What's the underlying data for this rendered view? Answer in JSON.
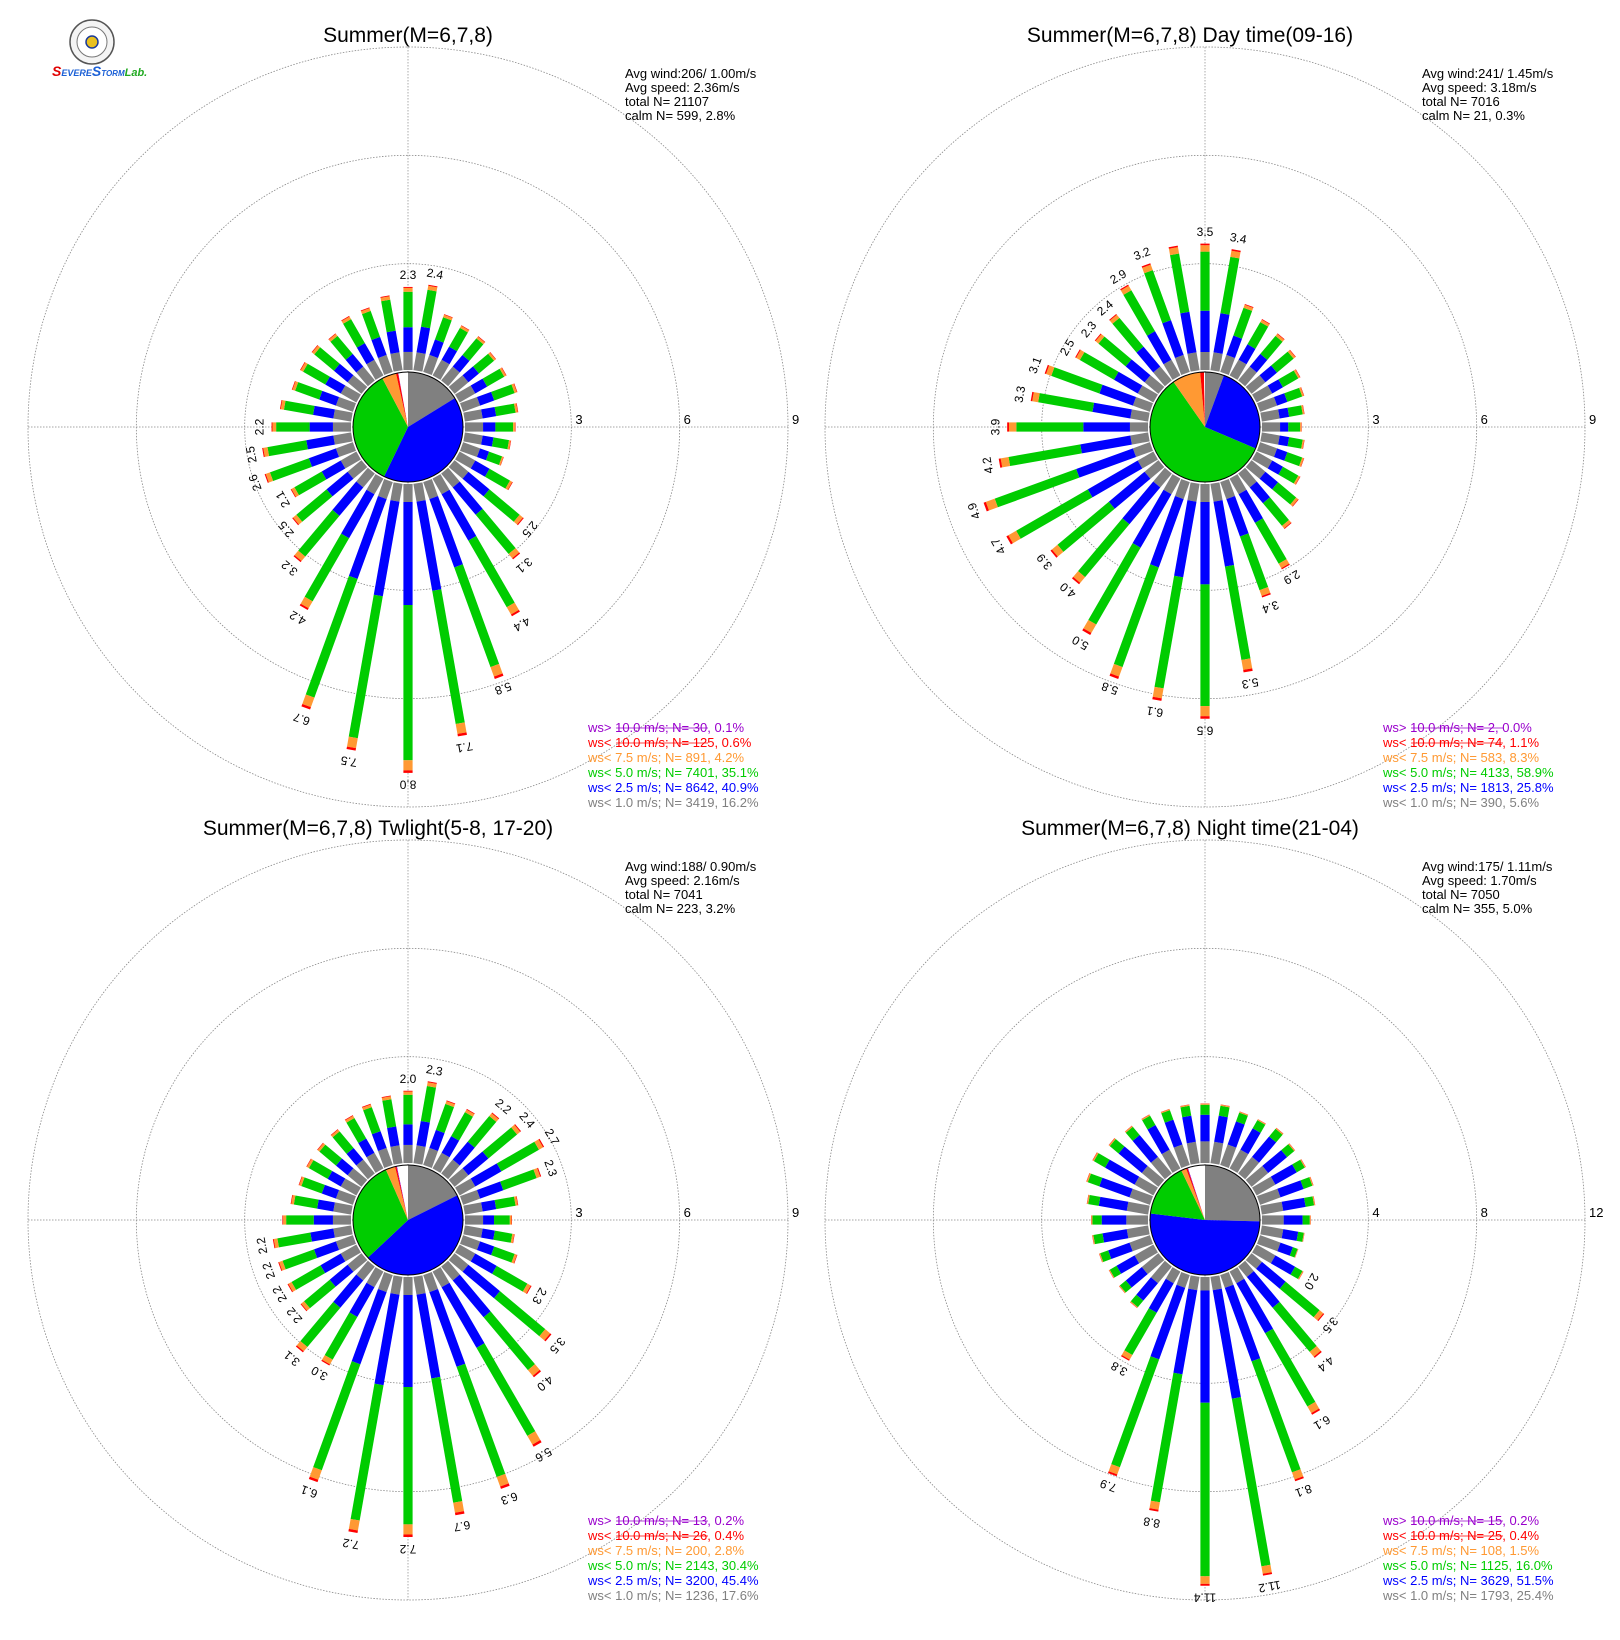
{
  "logo": {
    "text_parts": [
      "S",
      "EVERE",
      "S",
      "TORM",
      "Lab."
    ],
    "colors": [
      "#e00000",
      "#1a5fd6",
      "#1a5fd6",
      "#1a5fd6",
      "#22aa22"
    ]
  },
  "colors": {
    "gt10": "#9900cc",
    "lt10": "#ff0000",
    "lt7_5": "#ff9933",
    "lt5": "#00cc00",
    "lt2_5": "#0000ff",
    "lt1": "#808080",
    "grid": "#888888"
  },
  "chart_data": [
    {
      "type": "wind-rose",
      "title": "Summer(M=6,7,8)",
      "info": {
        "avg_wind": "Avg wind:206/ 1.00m/s",
        "avg_speed": "Avg speed: 2.36m/s",
        "total": "total N=      21107",
        "calm": "calm N=    599,   2.8%"
      },
      "rings": [
        3,
        6,
        9
      ],
      "ring_labels": [
        "3",
        "6",
        "9"
      ],
      "center_pie": [
        {
          "class": "lt1",
          "value": 16.2
        },
        {
          "class": "lt2_5",
          "value": 40.9
        },
        {
          "class": "lt5",
          "value": 35.1
        },
        {
          "class": "lt7_5",
          "value": 4.2
        },
        {
          "class": "lt10",
          "value": 0.6
        },
        {
          "class": "gt10",
          "value": 0.1
        },
        {
          "class": "calm",
          "value": 2.8
        }
      ],
      "legend": [
        {
          "class": "gt10",
          "text": "ws> 10.0 m/s; N=    30,  0.1%"
        },
        {
          "class": "lt10",
          "text": "ws< 10.0 m/s; N=   125,  0.6%"
        },
        {
          "class": "lt7_5",
          "text": "ws<  7.5 m/s; N=   891,  4.2%"
        },
        {
          "class": "lt5",
          "text": "ws<  5.0 m/s; N=  7401, 35.1%"
        },
        {
          "class": "lt2_5",
          "text": "ws<  2.5 m/s; N=  8642, 40.9%"
        },
        {
          "class": "lt1",
          "text": "ws<  1.0 m/s; N=  3419, 16.2%"
        }
      ],
      "sectors": 36,
      "bars": [
        {
          "dir": 0,
          "total": 2.3,
          "label": "2.3"
        },
        {
          "dir": 10,
          "total": 2.4,
          "label": "2.4"
        },
        {
          "dir": 20,
          "total": 1.7
        },
        {
          "dir": 30,
          "total": 1.6
        },
        {
          "dir": 40,
          "total": 1.6
        },
        {
          "dir": 50,
          "total": 1.5
        },
        {
          "dir": 60,
          "total": 1.5
        },
        {
          "dir": 70,
          "total": 1.6
        },
        {
          "dir": 80,
          "total": 1.5
        },
        {
          "dir": 90,
          "total": 1.4
        },
        {
          "dir": 100,
          "total": 1.3
        },
        {
          "dir": 110,
          "total": 1.2
        },
        {
          "dir": 120,
          "total": 1.7
        },
        {
          "dir": 130,
          "total": 2.5,
          "label": "2.5"
        },
        {
          "dir": 140,
          "total": 3.1,
          "label": "3.1"
        },
        {
          "dir": 150,
          "total": 4.4,
          "label": "4.4"
        },
        {
          "dir": 160,
          "total": 5.8,
          "label": "5.8"
        },
        {
          "dir": 170,
          "total": 7.1,
          "label": "7.1"
        },
        {
          "dir": 180,
          "total": 8.0,
          "label": "8.0"
        },
        {
          "dir": 190,
          "total": 7.5,
          "label": "7.5"
        },
        {
          "dir": 200,
          "total": 6.7,
          "label": "6.7"
        },
        {
          "dir": 210,
          "total": 4.2,
          "label": "4.2"
        },
        {
          "dir": 220,
          "total": 3.2,
          "label": "3.2"
        },
        {
          "dir": 230,
          "total": 2.5,
          "label": "2.5"
        },
        {
          "dir": 240,
          "total": 2.1,
          "label": "2.1"
        },
        {
          "dir": 250,
          "total": 2.6,
          "label": "2.6"
        },
        {
          "dir": 260,
          "total": 2.5,
          "label": "2.5"
        },
        {
          "dir": 270,
          "total": 2.2,
          "label": "2.2"
        },
        {
          "dir": 280,
          "total": 2.0
        },
        {
          "dir": 290,
          "total": 1.8
        },
        {
          "dir": 300,
          "total": 1.8
        },
        {
          "dir": 310,
          "total": 1.8
        },
        {
          "dir": 320,
          "total": 1.7
        },
        {
          "dir": 330,
          "total": 1.9
        },
        {
          "dir": 340,
          "total": 1.9
        },
        {
          "dir": 350,
          "total": 2.1
        }
      ]
    },
    {
      "type": "wind-rose",
      "title": "Summer(M=6,7,8) Day time(09-16)",
      "info": {
        "avg_wind": "Avg wind:241/ 1.45m/s",
        "avg_speed": "Avg speed: 3.18m/s",
        "total": "total N=        7016",
        "calm": "calm N=     21,   0.3%"
      },
      "rings": [
        3,
        6,
        9
      ],
      "ring_labels": [
        "3",
        "6",
        "9"
      ],
      "center_pie": [
        {
          "class": "lt1",
          "value": 5.6
        },
        {
          "class": "lt2_5",
          "value": 25.8
        },
        {
          "class": "lt5",
          "value": 58.9
        },
        {
          "class": "lt7_5",
          "value": 8.3
        },
        {
          "class": "lt10",
          "value": 1.1
        },
        {
          "class": "gt10",
          "value": 0.0
        },
        {
          "class": "calm",
          "value": 0.3
        }
      ],
      "legend": [
        {
          "class": "gt10",
          "text": "ws> 10.0 m/s; N=     2,  0.0%"
        },
        {
          "class": "lt10",
          "text": "ws< 10.0 m/s; N=    74,  1.1%"
        },
        {
          "class": "lt7_5",
          "text": "ws<  7.5 m/s; N=   583,  8.3%"
        },
        {
          "class": "lt5",
          "text": "ws<  5.0 m/s; N=  4133, 58.9%"
        },
        {
          "class": "lt2_5",
          "text": "ws<  2.5 m/s; N=  1813, 25.8%"
        },
        {
          "class": "lt1",
          "text": "ws<  1.0 m/s; N=   390,  5.6%"
        }
      ],
      "sectors": 36,
      "bars": [
        {
          "dir": 0,
          "total": 3.5,
          "label": "3.5"
        },
        {
          "dir": 10,
          "total": 3.4,
          "label": "3.4"
        },
        {
          "dir": 20,
          "total": 2.0
        },
        {
          "dir": 30,
          "total": 1.8
        },
        {
          "dir": 40,
          "total": 1.7
        },
        {
          "dir": 50,
          "total": 1.6
        },
        {
          "dir": 60,
          "total": 1.4
        },
        {
          "dir": 70,
          "total": 1.3
        },
        {
          "dir": 80,
          "total": 1.2
        },
        {
          "dir": 90,
          "total": 1.1
        },
        {
          "dir": 100,
          "total": 1.2
        },
        {
          "dir": 110,
          "total": 1.3
        },
        {
          "dir": 120,
          "total": 1.4
        },
        {
          "dir": 130,
          "total": 1.7
        },
        {
          "dir": 140,
          "total": 2.0
        },
        {
          "dir": 150,
          "total": 2.9,
          "label": "2.9"
        },
        {
          "dir": 160,
          "total": 3.4,
          "label": "3.4"
        },
        {
          "dir": 170,
          "total": 5.3,
          "label": "5.3"
        },
        {
          "dir": 180,
          "total": 6.5,
          "label": "6.5"
        },
        {
          "dir": 190,
          "total": 6.1,
          "label": "6.1"
        },
        {
          "dir": 200,
          "total": 5.8,
          "label": "5.8"
        },
        {
          "dir": 210,
          "total": 5.0,
          "label": "5.0"
        },
        {
          "dir": 220,
          "total": 4.0,
          "label": "4.0"
        },
        {
          "dir": 230,
          "total": 3.9,
          "label": "3.9"
        },
        {
          "dir": 240,
          "total": 4.7,
          "label": "4.7"
        },
        {
          "dir": 250,
          "total": 4.9,
          "label": "4.9"
        },
        {
          "dir": 260,
          "total": 4.2,
          "label": "4.2"
        },
        {
          "dir": 270,
          "total": 3.9,
          "label": "3.9"
        },
        {
          "dir": 280,
          "total": 3.3,
          "label": "3.3"
        },
        {
          "dir": 290,
          "total": 3.1,
          "label": "3.1"
        },
        {
          "dir": 300,
          "total": 2.5,
          "label": "2.5"
        },
        {
          "dir": 310,
          "total": 2.3,
          "label": "2.3"
        },
        {
          "dir": 320,
          "total": 2.4,
          "label": "2.4"
        },
        {
          "dir": 330,
          "total": 2.9,
          "label": "2.9"
        },
        {
          "dir": 340,
          "total": 3.2,
          "label": "3.2"
        },
        {
          "dir": 350,
          "total": 3.5
        }
      ]
    },
    {
      "type": "wind-rose",
      "title": "Summer(M=6,7,8) Twlight(5-8, 17-20)",
      "info": {
        "avg_wind": "Avg wind:188/ 0.90m/s",
        "avg_speed": "Avg speed: 2.16m/s",
        "total": "total N=        7041",
        "calm": "calm N=    223,   3.2%"
      },
      "rings": [
        3,
        6,
        9
      ],
      "ring_labels": [
        "3",
        "6",
        "9"
      ],
      "center_pie": [
        {
          "class": "lt1",
          "value": 17.6
        },
        {
          "class": "lt2_5",
          "value": 45.4
        },
        {
          "class": "lt5",
          "value": 30.4
        },
        {
          "class": "lt7_5",
          "value": 2.8
        },
        {
          "class": "lt10",
          "value": 0.4
        },
        {
          "class": "gt10",
          "value": 0.2
        },
        {
          "class": "calm",
          "value": 3.2
        }
      ],
      "legend": [
        {
          "class": "gt10",
          "text": "ws> 10.0 m/s; N=    13,  0.2%"
        },
        {
          "class": "lt10",
          "text": "ws< 10.0 m/s; N=    26,  0.4%"
        },
        {
          "class": "lt7_5",
          "text": "ws<  7.5 m/s; N=   200,  2.8%"
        },
        {
          "class": "lt5",
          "text": "ws<  5.0 m/s; N=  2143, 30.4%"
        },
        {
          "class": "lt2_5",
          "text": "ws<  2.5 m/s; N=  3200, 45.4%"
        },
        {
          "class": "lt1",
          "text": "ws<  1.0 m/s; N=  1236, 17.6%"
        }
      ],
      "sectors": 36,
      "bars": [
        {
          "dir": 0,
          "total": 2.0,
          "label": "2.0"
        },
        {
          "dir": 10,
          "total": 2.3,
          "label": "2.3"
        },
        {
          "dir": 20,
          "total": 1.9
        },
        {
          "dir": 30,
          "total": 1.9
        },
        {
          "dir": 40,
          "total": 2.2,
          "label": "2.2"
        },
        {
          "dir": 50,
          "total": 2.4,
          "label": "2.4"
        },
        {
          "dir": 60,
          "total": 2.7,
          "label": "2.7"
        },
        {
          "dir": 70,
          "total": 2.3,
          "label": "2.3"
        },
        {
          "dir": 80,
          "total": 1.5
        },
        {
          "dir": 90,
          "total": 1.3
        },
        {
          "dir": 100,
          "total": 1.4
        },
        {
          "dir": 110,
          "total": 1.6
        },
        {
          "dir": 120,
          "total": 2.3,
          "label": "2.3"
        },
        {
          "dir": 130,
          "total": 3.5,
          "label": "3.5"
        },
        {
          "dir": 140,
          "total": 4.0,
          "label": "4.0"
        },
        {
          "dir": 150,
          "total": 5.6,
          "label": "5.6"
        },
        {
          "dir": 160,
          "total": 6.3,
          "label": "6.3"
        },
        {
          "dir": 170,
          "total": 6.7,
          "label": "6.7"
        },
        {
          "dir": 180,
          "total": 7.2,
          "label": "7.2"
        },
        {
          "dir": 190,
          "total": 7.2,
          "label": "7.2"
        },
        {
          "dir": 200,
          "total": 6.1,
          "label": "6.1"
        },
        {
          "dir": 210,
          "total": 3.0,
          "label": "3.0"
        },
        {
          "dir": 220,
          "total": 3.1,
          "label": "3.1"
        },
        {
          "dir": 230,
          "total": 2.2,
          "label": "2.2"
        },
        {
          "dir": 240,
          "total": 2.2,
          "label": "2.2"
        },
        {
          "dir": 250,
          "total": 2.2,
          "label": "2.2"
        },
        {
          "dir": 260,
          "total": 2.2,
          "label": "2.2"
        },
        {
          "dir": 270,
          "total": 1.9
        },
        {
          "dir": 280,
          "total": 1.7
        },
        {
          "dir": 290,
          "total": 1.6
        },
        {
          "dir": 300,
          "total": 1.6
        },
        {
          "dir": 310,
          "total": 1.6
        },
        {
          "dir": 320,
          "total": 1.6
        },
        {
          "dir": 330,
          "total": 1.7
        },
        {
          "dir": 340,
          "total": 1.8
        },
        {
          "dir": 350,
          "total": 1.9
        }
      ]
    },
    {
      "type": "wind-rose",
      "title": "Summer(M=6,7,8) Night time(21-04)",
      "info": {
        "avg_wind": "Avg wind:175/ 1.11m/s",
        "avg_speed": "Avg speed: 1.70m/s",
        "total": "total N=        7050",
        "calm": "calm N=    355,   5.0%"
      },
      "rings": [
        4,
        8,
        12
      ],
      "ring_labels": [
        "4",
        "8",
        "12"
      ],
      "center_pie": [
        {
          "class": "lt1",
          "value": 25.4
        },
        {
          "class": "lt2_5",
          "value": 51.5
        },
        {
          "class": "lt5",
          "value": 16.0
        },
        {
          "class": "lt7_5",
          "value": 1.5
        },
        {
          "class": "lt10",
          "value": 0.4
        },
        {
          "class": "gt10",
          "value": 0.2
        },
        {
          "class": "calm",
          "value": 5.0
        }
      ],
      "legend": [
        {
          "class": "gt10",
          "text": "ws> 10.0 m/s; N=    15,  0.2%"
        },
        {
          "class": "lt10",
          "text": "ws< 10.0 m/s; N=    25,  0.4%"
        },
        {
          "class": "lt7_5",
          "text": "ws<  7.5 m/s; N=   108,  1.5%"
        },
        {
          "class": "lt5",
          "text": "ws<  5.0 m/s; N=  1125, 16.0%"
        },
        {
          "class": "lt2_5",
          "text": "ws<  2.5 m/s; N=  3629, 51.5%"
        },
        {
          "class": "lt1",
          "text": "ws<  1.0 m/s; N=  1793, 25.4%"
        }
      ],
      "sectors": 36,
      "bars": [
        {
          "dir": 0,
          "total": 2.2
        },
        {
          "dir": 10,
          "total": 2.2
        },
        {
          "dir": 20,
          "total": 2.1
        },
        {
          "dir": 30,
          "total": 2.1
        },
        {
          "dir": 40,
          "total": 2.2
        },
        {
          "dir": 50,
          "total": 2.1
        },
        {
          "dir": 60,
          "total": 2.1
        },
        {
          "dir": 70,
          "total": 2.1
        },
        {
          "dir": 80,
          "total": 2.0
        },
        {
          "dir": 90,
          "total": 1.8
        },
        {
          "dir": 100,
          "total": 1.6
        },
        {
          "dir": 110,
          "total": 1.5
        },
        {
          "dir": 120,
          "total": 2.0,
          "label": "2.0"
        },
        {
          "dir": 130,
          "total": 3.5,
          "label": "3.5"
        },
        {
          "dir": 140,
          "total": 4.4,
          "label": "4.4"
        },
        {
          "dir": 150,
          "total": 6.1,
          "label": "6.1"
        },
        {
          "dir": 160,
          "total": 8.1,
          "label": "8.1"
        },
        {
          "dir": 170,
          "total": 11.2,
          "label": "11.2"
        },
        {
          "dir": 180,
          "total": 11.4,
          "label": "11.4"
        },
        {
          "dir": 190,
          "total": 8.8,
          "label": "8.8"
        },
        {
          "dir": 200,
          "total": 7.9,
          "label": "7.9"
        },
        {
          "dir": 210,
          "total": 3.8,
          "label": "3.8"
        },
        {
          "dir": 220,
          "total": 2.0
        },
        {
          "dir": 230,
          "total": 1.9
        },
        {
          "dir": 240,
          "total": 1.9
        },
        {
          "dir": 250,
          "total": 2.0
        },
        {
          "dir": 260,
          "total": 2.1
        },
        {
          "dir": 270,
          "total": 2.1
        },
        {
          "dir": 280,
          "total": 2.3
        },
        {
          "dir": 290,
          "total": 2.5
        },
        {
          "dir": 300,
          "total": 2.6
        },
        {
          "dir": 310,
          "total": 2.4
        },
        {
          "dir": 320,
          "total": 2.3
        },
        {
          "dir": 330,
          "total": 2.3
        },
        {
          "dir": 340,
          "total": 2.2
        },
        {
          "dir": 350,
          "total": 2.2
        }
      ]
    }
  ]
}
